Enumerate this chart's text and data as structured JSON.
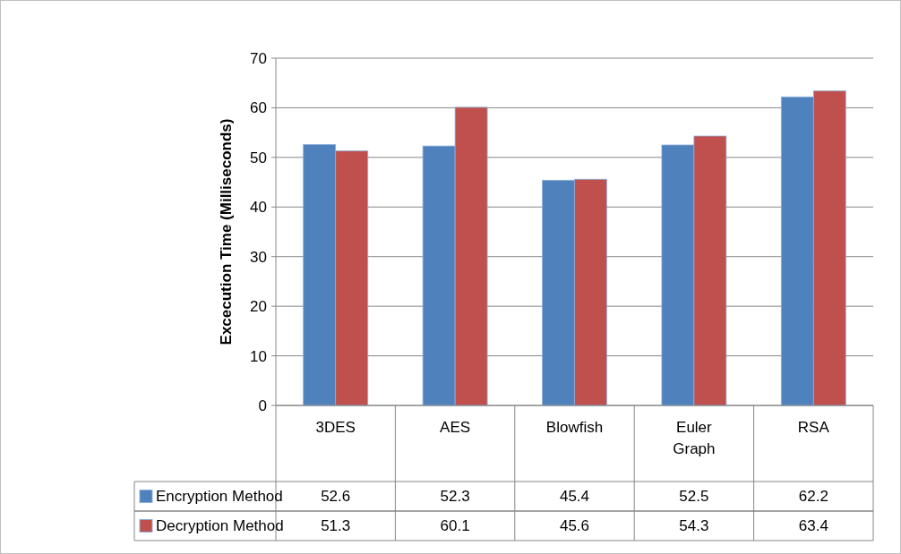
{
  "chart_data": {
    "type": "bar",
    "ylabel": "Excecution Time (Milliseconds)",
    "categories": [
      "3DES",
      "AES",
      "Blowfish",
      "Euler Graph",
      "RSA"
    ],
    "series": [
      {
        "name": "Encryption Method",
        "color": "#4f81bd",
        "values": [
          52.6,
          52.3,
          45.4,
          52.5,
          62.2
        ]
      },
      {
        "name": "Decryption Method",
        "color": "#c0504d",
        "values": [
          51.3,
          60.1,
          45.6,
          54.3,
          63.4
        ]
      }
    ],
    "ylim": [
      0,
      70
    ],
    "yticks": [
      0,
      10,
      20,
      30,
      40,
      50,
      60,
      70
    ],
    "grid": "y",
    "legend": "bottom",
    "data_labels": true
  }
}
